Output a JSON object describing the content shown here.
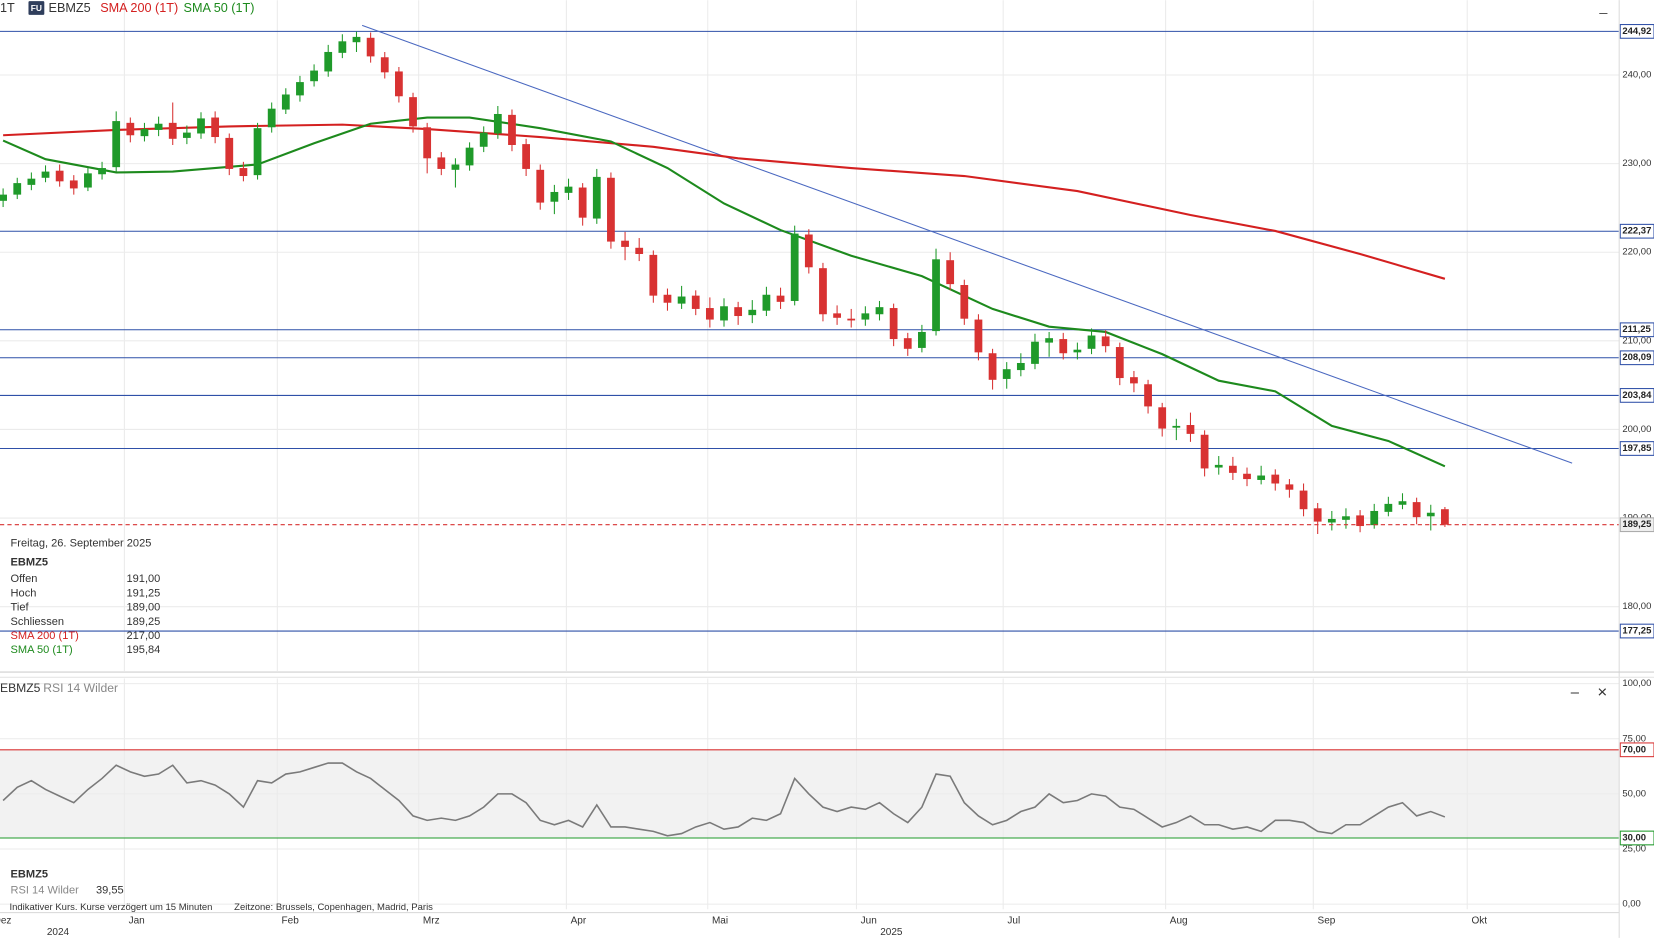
{
  "chart_data": [
    {
      "type": "candlestick",
      "timeframe": "1T",
      "badge": "FU",
      "symbol": "EBMZ5",
      "open": [
        225.8,
        226.5,
        227.6,
        228.4,
        229.2,
        228.1,
        227.3,
        228.8,
        229.6,
        234.6,
        233.1,
        233.8,
        234.6,
        232.9,
        233.4,
        235.2,
        232.9,
        229.5,
        228.7,
        234.1,
        236.1,
        237.7,
        239.3,
        240.4,
        242.5,
        243.7,
        244.2,
        242.0,
        240.4,
        237.5,
        234.1,
        230.7,
        229.3,
        229.8,
        231.9,
        233.4,
        235.5,
        232.2,
        229.3,
        225.7,
        226.7,
        227.3,
        223.8,
        228.4,
        221.3,
        220.5,
        219.7,
        215.2,
        214.2,
        215.1,
        213.7,
        212.3,
        213.8,
        212.9,
        213.4,
        215.1,
        214.5,
        222.0,
        218.2,
        213.1,
        212.5,
        212.4,
        213.0,
        213.7,
        210.3,
        209.2,
        211.1,
        219.1,
        216.3,
        212.4,
        208.6,
        205.7,
        206.7,
        207.4,
        209.8,
        210.2,
        208.7,
        209.1,
        210.5,
        209.3,
        205.9,
        205.1,
        202.5,
        200.2,
        200.5,
        199.4,
        195.7,
        195.9,
        195.0,
        194.3,
        194.9,
        193.8,
        193.1,
        191.1,
        189.5,
        189.8,
        190.3,
        189.2,
        190.7,
        191.5,
        191.8,
        190.2,
        191.0
      ],
      "high": [
        227.2,
        228.4,
        229.0,
        229.8,
        229.9,
        228.7,
        229.5,
        230.2,
        235.9,
        235.2,
        234.6,
        235.3,
        236.9,
        234.3,
        235.8,
        235.9,
        233.4,
        230.2,
        234.6,
        236.9,
        238.5,
        239.9,
        241.2,
        243.4,
        244.6,
        244.9,
        244.8,
        242.6,
        240.9,
        238.0,
        234.6,
        231.3,
        230.6,
        232.4,
        234.2,
        236.5,
        236.1,
        232.8,
        229.9,
        227.6,
        228.3,
        227.8,
        229.4,
        229.0,
        222.3,
        221.6,
        220.2,
        215.9,
        216.2,
        215.7,
        214.9,
        214.8,
        214.4,
        214.6,
        216.1,
        216.0,
        223.0,
        222.6,
        218.8,
        214.0,
        213.6,
        213.9,
        214.5,
        214.2,
        210.9,
        211.8,
        220.4,
        220.0,
        216.9,
        213.0,
        209.1,
        207.6,
        208.6,
        210.8,
        211.0,
        210.9,
        209.8,
        211.4,
        211.2,
        209.8,
        206.6,
        205.6,
        203.0,
        201.2,
        201.9,
        199.9,
        197.0,
        196.9,
        195.7,
        195.9,
        195.5,
        194.4,
        193.9,
        191.7,
        190.8,
        191.1,
        190.9,
        191.6,
        192.4,
        192.8,
        192.3,
        191.5,
        191.25
      ],
      "low": [
        225.1,
        226.0,
        227.0,
        227.9,
        227.4,
        226.5,
        226.9,
        228.2,
        229.1,
        232.4,
        232.5,
        233.1,
        232.1,
        232.2,
        232.8,
        232.3,
        228.7,
        228.0,
        228.2,
        233.5,
        235.6,
        237.0,
        238.7,
        239.8,
        241.9,
        242.6,
        241.4,
        239.6,
        236.9,
        233.5,
        228.9,
        228.7,
        227.3,
        229.2,
        231.3,
        232.8,
        231.4,
        228.6,
        224.8,
        224.3,
        225.9,
        223.0,
        223.2,
        220.4,
        219.1,
        219.0,
        214.3,
        213.4,
        213.6,
        212.9,
        211.5,
        211.6,
        211.8,
        212.0,
        212.8,
        213.6,
        214.0,
        217.6,
        212.2,
        211.8,
        211.5,
        211.7,
        212.3,
        209.4,
        208.3,
        208.7,
        210.6,
        215.7,
        211.8,
        207.8,
        204.5,
        204.6,
        206.0,
        206.8,
        208.2,
        207.9,
        207.9,
        208.5,
        208.7,
        205.0,
        204.2,
        201.8,
        199.2,
        198.8,
        198.6,
        194.7,
        194.9,
        194.3,
        193.6,
        193.8,
        193.1,
        192.3,
        190.2,
        188.2,
        188.6,
        188.8,
        188.4,
        188.8,
        190.2,
        191.0,
        189.3,
        188.6,
        189.0
      ],
      "close": [
        226.5,
        227.8,
        228.3,
        229.1,
        228.0,
        227.2,
        228.9,
        229.5,
        234.8,
        233.2,
        233.9,
        234.5,
        232.8,
        233.5,
        235.1,
        233.0,
        229.4,
        228.6,
        234.0,
        236.2,
        237.8,
        239.2,
        240.5,
        242.6,
        243.8,
        244.3,
        242.1,
        240.3,
        237.6,
        234.2,
        230.6,
        229.4,
        229.9,
        231.8,
        233.5,
        235.6,
        232.1,
        229.4,
        225.6,
        226.8,
        227.4,
        223.9,
        228.5,
        221.2,
        220.6,
        219.8,
        215.1,
        214.3,
        215.0,
        213.6,
        212.4,
        213.9,
        212.8,
        213.5,
        215.2,
        214.4,
        222.1,
        218.3,
        213.0,
        212.6,
        212.3,
        213.1,
        213.8,
        210.2,
        209.1,
        211.0,
        219.2,
        216.4,
        212.5,
        208.7,
        205.6,
        206.8,
        207.5,
        209.9,
        210.3,
        208.6,
        209.0,
        210.6,
        209.4,
        205.8,
        205.2,
        202.6,
        200.1,
        200.4,
        199.5,
        195.6,
        196.0,
        195.1,
        194.4,
        194.8,
        193.9,
        193.2,
        191.0,
        189.6,
        189.9,
        190.2,
        189.1,
        190.8,
        191.6,
        191.9,
        190.1,
        190.6,
        189.25
      ],
      "up_color": "#1f9a2a",
      "down_color": "#d83232",
      "series": [
        {
          "name": "SMA 200 (1T)",
          "color": "#d42020",
          "x": [
            0,
            8,
            16,
            24,
            30,
            38,
            46,
            52,
            60,
            68,
            76,
            84,
            90,
            96,
            102
          ],
          "values": [
            233.2,
            233.8,
            234.2,
            234.4,
            233.9,
            233.0,
            231.9,
            230.6,
            229.5,
            228.6,
            226.9,
            224.2,
            222.4,
            219.8,
            217.0
          ]
        },
        {
          "name": "SMA 50 (1T)",
          "color": "#1d8a1d",
          "x": [
            0,
            3,
            8,
            12,
            18,
            22,
            26,
            30,
            33,
            38,
            43,
            47,
            51,
            55,
            60,
            65,
            70,
            74,
            78,
            82,
            86,
            90,
            94,
            98,
            102
          ],
          "values": [
            232.6,
            230.5,
            229.0,
            229.1,
            229.9,
            232.3,
            234.5,
            235.2,
            235.2,
            234.0,
            232.5,
            229.5,
            225.5,
            222.5,
            219.6,
            217.3,
            213.6,
            211.6,
            211.0,
            208.5,
            205.5,
            204.3,
            200.4,
            198.7,
            195.84
          ]
        }
      ],
      "trend_line": {
        "color": "#4a68c0",
        "x": [
          25.4,
          111.0
        ],
        "values": [
          245.6,
          196.2
        ]
      },
      "level_color": "#2f50a8",
      "levels": [
        {
          "value": 244.92,
          "label": "244,92"
        },
        {
          "value": 222.37,
          "label": "222,37"
        },
        {
          "value": 211.25,
          "label": "211,25"
        },
        {
          "value": 208.09,
          "label": "208,09"
        },
        {
          "value": 203.84,
          "label": "203,84"
        },
        {
          "value": 197.85,
          "label": "197,85"
        },
        {
          "value": 177.25,
          "label": "177,25"
        }
      ],
      "last_price": {
        "value": 189.25,
        "label": "189,25",
        "color": "#d83232"
      },
      "xlim": [
        -0.22,
        114.33
      ],
      "ylim": [
        172.74,
        248.45
      ],
      "yticks": [
        {
          "value": 180,
          "label": "180,00"
        },
        {
          "value": 190,
          "label": "190,00"
        },
        {
          "value": 200,
          "label": "200,00"
        },
        {
          "value": 210,
          "label": "210,00"
        },
        {
          "value": 220,
          "label": "220,00"
        },
        {
          "value": 230,
          "label": "230,00"
        },
        {
          "value": 240,
          "label": "240,00"
        }
      ],
      "xticks": [
        {
          "value": -0.97,
          "label": "Dez"
        },
        {
          "value": 8.58,
          "label": "Jan"
        },
        {
          "value": 19.4,
          "label": "Feb"
        },
        {
          "value": 29.4,
          "label": "Mrz"
        },
        {
          "value": 39.85,
          "label": "Apr"
        },
        {
          "value": 49.85,
          "label": "Mai"
        },
        {
          "value": 60.37,
          "label": "Jun"
        },
        {
          "value": 70.75,
          "label": "Jul"
        },
        {
          "value": 82.24,
          "label": "Aug"
        },
        {
          "value": 92.69,
          "label": "Sep"
        },
        {
          "value": 103.58,
          "label": "Okt"
        }
      ],
      "year_ticks": [
        {
          "value": 3.88,
          "label": "2024"
        },
        {
          "value": 62.84,
          "label": "2025"
        }
      ],
      "grid": true
    },
    {
      "type": "line",
      "symbol": "EBMZ5",
      "indicator": "RSI 14 Wilder",
      "last_value_label": "39,55",
      "series": [
        {
          "name": "RSI 14 Wilder",
          "color": "#7a7a7a",
          "values": [
            47,
            53,
            56,
            52,
            49,
            46,
            52,
            57,
            63,
            60,
            58,
            59,
            63,
            55,
            56,
            54,
            50,
            44,
            56,
            55,
            59,
            60,
            62,
            64,
            64,
            60,
            57,
            52,
            47,
            40,
            38,
            39,
            38,
            40,
            44,
            50,
            50,
            46,
            38,
            36,
            38,
            35,
            45,
            35,
            35,
            34,
            33,
            31,
            32,
            35,
            37,
            34,
            35,
            39,
            38,
            41,
            57,
            50,
            44,
            42,
            44,
            43,
            46,
            41,
            37,
            44,
            59,
            58,
            46,
            40,
            36,
            38,
            42,
            44,
            50,
            46,
            47,
            50,
            49,
            44,
            43,
            39,
            35,
            37,
            40,
            36,
            36,
            34,
            35,
            33,
            38,
            38,
            37,
            33,
            32,
            36,
            36,
            40,
            44,
            46,
            40,
            42,
            39.55
          ]
        }
      ],
      "bands": [
        {
          "value": 70,
          "label": "70,00",
          "color": "#d83232"
        },
        {
          "value": 30,
          "label": "30,00",
          "color": "#1f9a2a"
        }
      ],
      "band_fill": "#f2f2f2",
      "xlim": [
        -0.22,
        114.33
      ],
      "ylim": [
        -2.39,
        102.39
      ],
      "yticks": [
        {
          "value": 0,
          "label": "0,00"
        },
        {
          "value": 25,
          "label": "25,00"
        },
        {
          "value": 50,
          "label": "50,00"
        },
        {
          "value": 75,
          "label": "75,00"
        },
        {
          "value": 100,
          "label": "100,00"
        }
      ],
      "grid": true
    }
  ],
  "info": {
    "date": "Freitag, 26. September 2025",
    "symbol": "EBMZ5",
    "rows": [
      [
        "Offen",
        "191,00"
      ],
      [
        "Hoch",
        "191,25"
      ],
      [
        "Tief",
        "189,00"
      ],
      [
        "Schliessen",
        "189,25"
      ]
    ],
    "sma_values": [
      "217,00",
      "195,84"
    ]
  },
  "toolbar": {
    "minimize": "–",
    "close": "×"
  },
  "footer": {
    "notice": "Indikativer Kurs. Kurse verzögert um 15 Minuten",
    "timezone": "Zeitzone: Brussels, Copenhagen, Madrid, Paris"
  }
}
